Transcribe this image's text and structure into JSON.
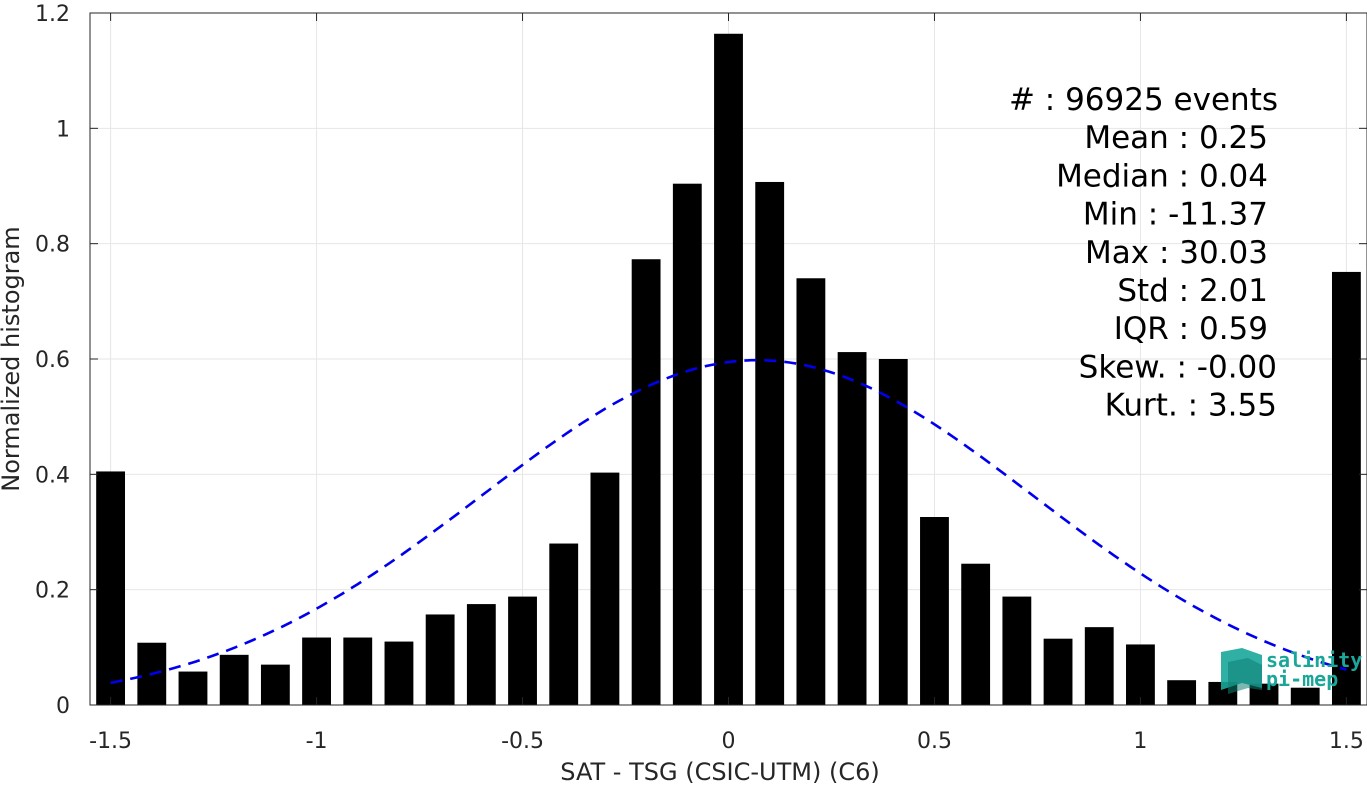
{
  "chart_data": {
    "type": "bar",
    "xlabel": "SAT - TSG (CSIC-UTM) (C6)",
    "ylabel": "Normalized histogram",
    "xlim": [
      -1.55,
      1.55
    ],
    "ylim": [
      0,
      1.2
    ],
    "xticks": [
      -1.5,
      -1,
      -0.5,
      0,
      0.5,
      1,
      1.5
    ],
    "xtick_labels": [
      "-1.5",
      "-1",
      "-0.5",
      "0",
      "0.5",
      "1",
      "1.5"
    ],
    "yticks": [
      0,
      0.2,
      0.4,
      0.6,
      0.8,
      1,
      1.2
    ],
    "ytick_labels": [
      "0",
      "0.2",
      "0.4",
      "0.6",
      "0.8",
      "1",
      "1.2"
    ],
    "grid": true,
    "bar_width": 0.07,
    "bins": [
      {
        "x": -1.5,
        "y": 0.405
      },
      {
        "x": -1.4,
        "y": 0.108
      },
      {
        "x": -1.3,
        "y": 0.058
      },
      {
        "x": -1.2,
        "y": 0.087
      },
      {
        "x": -1.1,
        "y": 0.07
      },
      {
        "x": -1.0,
        "y": 0.117
      },
      {
        "x": -0.9,
        "y": 0.117
      },
      {
        "x": -0.8,
        "y": 0.11
      },
      {
        "x": -0.7,
        "y": 0.157
      },
      {
        "x": -0.6,
        "y": 0.175
      },
      {
        "x": -0.5,
        "y": 0.188
      },
      {
        "x": -0.4,
        "y": 0.28
      },
      {
        "x": -0.3,
        "y": 0.403
      },
      {
        "x": -0.2,
        "y": 0.773
      },
      {
        "x": -0.1,
        "y": 0.904
      },
      {
        "x": 0.0,
        "y": 1.164
      },
      {
        "x": 0.1,
        "y": 0.907
      },
      {
        "x": 0.2,
        "y": 0.74
      },
      {
        "x": 0.3,
        "y": 0.612
      },
      {
        "x": 0.4,
        "y": 0.6
      },
      {
        "x": 0.5,
        "y": 0.326
      },
      {
        "x": 0.6,
        "y": 0.245
      },
      {
        "x": 0.7,
        "y": 0.188
      },
      {
        "x": 0.8,
        "y": 0.115
      },
      {
        "x": 0.9,
        "y": 0.135
      },
      {
        "x": 1.0,
        "y": 0.105
      },
      {
        "x": 1.1,
        "y": 0.043
      },
      {
        "x": 1.2,
        "y": 0.04
      },
      {
        "x": 1.3,
        "y": 0.037
      },
      {
        "x": 1.4,
        "y": 0.03
      },
      {
        "x": 1.5,
        "y": 0.751
      }
    ],
    "fit_curve": {
      "style": "dashed",
      "color": "#0000ee",
      "mean": 0.07,
      "peak": 0.598,
      "sigma": 0.67,
      "x_range": [
        -1.5,
        1.5
      ]
    },
    "stats": [
      "#  : 96925 events",
      "Mean : 0.25",
      "Median : 0.04",
      "Min : -11.37",
      "Max : 30.03",
      "Std : 2.01",
      "IQR : 0.59",
      "Skew. : -0.00",
      "Kurt. : 3.55"
    ]
  },
  "logo": {
    "line1": "salinity",
    "line2": "pi-mep"
  },
  "colors": {
    "bar": "#000000",
    "grid": "#e6e6e6",
    "axis": "#262626",
    "fit": "#0000ee",
    "logo": "#1aa79a"
  }
}
